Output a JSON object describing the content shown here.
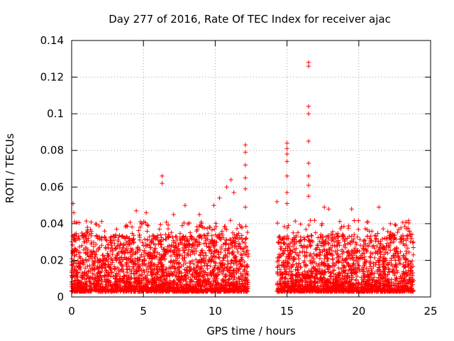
{
  "chart_data": {
    "type": "scatter",
    "title": "Day 277 of 2016, Rate Of TEC Index for receiver ajac",
    "xlabel": "GPS time / hours",
    "ylabel": "ROTI / TECUs",
    "xlim": [
      0,
      25
    ],
    "ylim": [
      0,
      0.14
    ],
    "x_ticks": [
      0,
      5,
      10,
      15,
      20,
      25
    ],
    "x_tick_labels": [
      "0",
      "5",
      "10",
      "15",
      "20",
      "25"
    ],
    "y_ticks": [
      0,
      0.02,
      0.04,
      0.06,
      0.08,
      0.1,
      0.12,
      0.14
    ],
    "y_tick_labels": [
      "0",
      "0.02",
      "0.04",
      "0.06",
      "0.08",
      "0.1",
      "0.12",
      "0.14"
    ],
    "grid": true,
    "marker": "+",
    "series_color": "#ff0000",
    "series": [
      {
        "name": "ROTI",
        "segments": [
          {
            "x_range": [
              0.0,
              12.3
            ],
            "typical_range": [
              0.003,
              0.03
            ]
          },
          {
            "x_range": [
              14.3,
              23.8
            ],
            "typical_range": [
              0.003,
              0.03
            ]
          }
        ],
        "outliers": [
          [
            0.1,
            0.051
          ],
          [
            0.15,
            0.046
          ],
          [
            0.2,
            0.041
          ],
          [
            0.2,
            0.025
          ],
          [
            1.1,
            0.038
          ],
          [
            2.3,
            0.036
          ],
          [
            4.5,
            0.047
          ],
          [
            5.2,
            0.046
          ],
          [
            6.3,
            0.066
          ],
          [
            6.3,
            0.062
          ],
          [
            7.1,
            0.045
          ],
          [
            7.9,
            0.05
          ],
          [
            8.9,
            0.045
          ],
          [
            9.9,
            0.05
          ],
          [
            10.3,
            0.054
          ],
          [
            10.8,
            0.06
          ],
          [
            11.1,
            0.064
          ],
          [
            11.3,
            0.057
          ],
          [
            12.1,
            0.083
          ],
          [
            12.1,
            0.079
          ],
          [
            12.1,
            0.072
          ],
          [
            12.1,
            0.065
          ],
          [
            12.1,
            0.059
          ],
          [
            12.1,
            0.049
          ],
          [
            14.3,
            0.052
          ],
          [
            15.0,
            0.084
          ],
          [
            15.0,
            0.081
          ],
          [
            15.0,
            0.078
          ],
          [
            15.0,
            0.074
          ],
          [
            15.0,
            0.066
          ],
          [
            15.0,
            0.057
          ],
          [
            15.0,
            0.051
          ],
          [
            15.1,
            0.039
          ],
          [
            16.5,
            0.128
          ],
          [
            16.5,
            0.126
          ],
          [
            16.5,
            0.104
          ],
          [
            16.5,
            0.1
          ],
          [
            16.5,
            0.085
          ],
          [
            16.5,
            0.073
          ],
          [
            16.5,
            0.066
          ],
          [
            16.5,
            0.061
          ],
          [
            16.5,
            0.055
          ],
          [
            17.6,
            0.049
          ],
          [
            17.9,
            0.048
          ],
          [
            19.5,
            0.048
          ],
          [
            21.4,
            0.049
          ],
          [
            22.2,
            0.04
          ],
          [
            23.6,
            0.033
          ]
        ]
      }
    ]
  }
}
